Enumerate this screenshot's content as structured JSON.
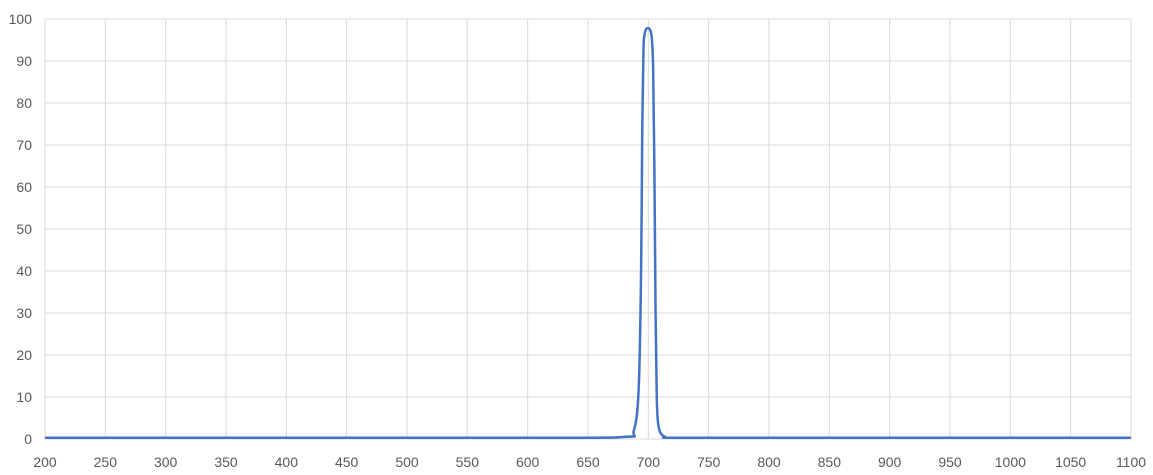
{
  "chart_data": {
    "type": "line",
    "title": "",
    "xlabel": "",
    "ylabel": "",
    "xlim": [
      200,
      1100
    ],
    "ylim": [
      0,
      100
    ],
    "x_ticks": [
      "200",
      "250",
      "300",
      "350",
      "400",
      "450",
      "500",
      "550",
      "600",
      "650",
      "700",
      "750",
      "800",
      "850",
      "900",
      "950",
      "1000",
      "1050",
      "1100"
    ],
    "y_ticks": [
      "0",
      "10",
      "20",
      "30",
      "40",
      "50",
      "60",
      "70",
      "80",
      "90",
      "100"
    ],
    "grid": true,
    "legend": "none",
    "series": [
      {
        "color": "#4472C4",
        "x": [
          200,
          600,
          680,
          688,
          692,
          694,
          695,
          696,
          697,
          698,
          699,
          700,
          701,
          702,
          703,
          704,
          705,
          706,
          707,
          708,
          710,
          714,
          720,
          800,
          1100
        ],
        "y": [
          0.3,
          0.3,
          0.5,
          2,
          12,
          40,
          75,
          93,
          96.5,
          97.5,
          97.8,
          97.8,
          97.6,
          97,
          95,
          88,
          65,
          30,
          10,
          4,
          1.5,
          0.5,
          0.3,
          0.3,
          0.3
        ]
      }
    ]
  },
  "colors": {
    "grid": "#d9d9d9",
    "series": "#4472C4"
  }
}
